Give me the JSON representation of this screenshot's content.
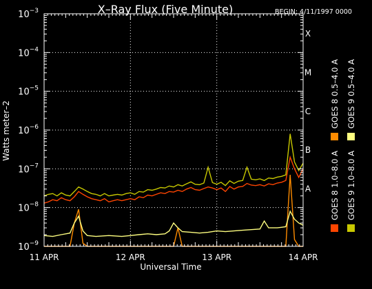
{
  "chart_data": {
    "type": "line",
    "title": "X–Ray Flux (Five Minute)",
    "begin_label": "BEGIN: 4/11/1997 0000",
    "xlabel": "Universal Time",
    "ylabel": "Watts meter–2",
    "x_ticks": [
      "11 APR",
      "12 APR",
      "13 APR",
      "14 APR"
    ],
    "xlim": [
      0,
      3
    ],
    "ylim": [
      1e-09,
      0.001
    ],
    "y_scale": "log",
    "y_ticks": [
      {
        "value": 1e-09,
        "label_base": "10",
        "label_exp": "−9"
      },
      {
        "value": 1e-08,
        "label_base": "10",
        "label_exp": "−8"
      },
      {
        "value": 1e-07,
        "label_base": "10",
        "label_exp": "−7"
      },
      {
        "value": 1e-06,
        "label_base": "10",
        "label_exp": "−6"
      },
      {
        "value": 1e-05,
        "label_base": "10",
        "label_exp": "−5"
      },
      {
        "value": 0.0001,
        "label_base": "10",
        "label_exp": "−4"
      },
      {
        "value": 0.001,
        "label_base": "10",
        "label_exp": "−3"
      }
    ],
    "flare_classes": [
      {
        "label": "X",
        "value": 0.000316
      },
      {
        "label": "M",
        "value": 3.16e-05
      },
      {
        "label": "C",
        "value": 3.16e-06
      },
      {
        "label": "B",
        "value": 3.16e-07
      },
      {
        "label": "A",
        "value": 3.16e-08
      }
    ],
    "grid": true,
    "legend_position": "right, vertical",
    "series": [
      {
        "name": "GOES 8 1.0–8.0 A",
        "color": "#ff4500",
        "x": [
          0,
          0.05,
          0.1,
          0.15,
          0.2,
          0.25,
          0.3,
          0.35,
          0.4,
          0.45,
          0.5,
          0.55,
          0.6,
          0.65,
          0.7,
          0.75,
          0.8,
          0.85,
          0.9,
          0.95,
          1.0,
          1.05,
          1.1,
          1.15,
          1.2,
          1.25,
          1.3,
          1.35,
          1.4,
          1.45,
          1.5,
          1.55,
          1.6,
          1.65,
          1.7,
          1.75,
          1.8,
          1.85,
          1.9,
          1.95,
          2.0,
          2.05,
          2.1,
          2.15,
          2.2,
          2.25,
          2.3,
          2.35,
          2.4,
          2.45,
          2.5,
          2.55,
          2.6,
          2.65,
          2.7,
          2.75,
          2.8,
          2.85,
          2.9,
          2.95,
          3.0
        ],
        "values": [
          1.3e-08,
          1.4e-08,
          1.6e-08,
          1.5e-08,
          1.8e-08,
          1.6e-08,
          1.5e-08,
          1.9e-08,
          2.6e-08,
          2.2e-08,
          1.9e-08,
          1.7e-08,
          1.6e-08,
          1.5e-08,
          1.7e-08,
          1.4e-08,
          1.5e-08,
          1.6e-08,
          1.5e-08,
          1.6e-08,
          1.7e-08,
          1.6e-08,
          1.9e-08,
          1.8e-08,
          2.1e-08,
          2e-08,
          2.2e-08,
          2.4e-08,
          2.3e-08,
          2.6e-08,
          2.5e-08,
          2.8e-08,
          2.6e-08,
          3e-08,
          3.3e-08,
          2.9e-08,
          2.8e-08,
          3.1e-08,
          3.4e-08,
          3.2e-08,
          2.9e-08,
          3.2e-08,
          2.6e-08,
          3.5e-08,
          3e-08,
          3.4e-08,
          3.5e-08,
          4.2e-08,
          3.8e-08,
          3.7e-08,
          3.9e-08,
          3.6e-08,
          4.1e-08,
          3.9e-08,
          4.3e-08,
          4.5e-08,
          5e-08,
          2e-07,
          1e-07,
          6e-08,
          1e-07
        ]
      },
      {
        "name": "GOES 8 0.5–4.0 A",
        "color": "#ff8c00",
        "x": [
          0,
          0.15,
          0.3,
          0.35,
          0.4,
          0.45,
          0.5,
          0.65,
          0.8,
          0.95,
          1.1,
          1.25,
          1.4,
          1.5,
          1.55,
          1.6,
          1.7,
          1.8,
          1.95,
          2.1,
          2.2,
          2.4,
          2.5,
          2.6,
          2.7,
          2.75,
          2.8,
          2.85,
          2.9,
          2.95,
          3.0
        ],
        "values": [
          1e-09,
          1e-09,
          1e-09,
          4e-09,
          9e-09,
          1.2e-09,
          1e-09,
          1e-09,
          1e-09,
          1e-09,
          1e-09,
          1e-09,
          1e-09,
          1e-09,
          3e-09,
          1e-09,
          1e-09,
          1e-09,
          1e-09,
          1e-09,
          1e-09,
          1e-09,
          1e-09,
          1e-09,
          1e-09,
          1e-09,
          1e-09,
          7e-08,
          1.5e-09,
          1e-09,
          1e-09
        ]
      },
      {
        "name": "GOES 9 1.0–8.0 A",
        "color": "#c8c800",
        "x": [
          0,
          0.05,
          0.1,
          0.15,
          0.2,
          0.25,
          0.3,
          0.35,
          0.4,
          0.45,
          0.5,
          0.55,
          0.6,
          0.65,
          0.7,
          0.75,
          0.8,
          0.85,
          0.9,
          0.95,
          1.0,
          1.05,
          1.1,
          1.15,
          1.2,
          1.25,
          1.3,
          1.35,
          1.4,
          1.45,
          1.5,
          1.55,
          1.6,
          1.65,
          1.7,
          1.75,
          1.8,
          1.85,
          1.9,
          1.95,
          2.0,
          2.05,
          2.1,
          2.15,
          2.2,
          2.25,
          2.3,
          2.35,
          2.4,
          2.45,
          2.5,
          2.55,
          2.6,
          2.65,
          2.7,
          2.75,
          2.8,
          2.85,
          2.9,
          2.95,
          3.0
        ],
        "values": [
          2e-08,
          2.2e-08,
          2.3e-08,
          2e-08,
          2.4e-08,
          2.1e-08,
          2e-08,
          2.6e-08,
          3.4e-08,
          3e-08,
          2.6e-08,
          2.3e-08,
          2.2e-08,
          2e-08,
          2.3e-08,
          2e-08,
          2.1e-08,
          2.2e-08,
          2.1e-08,
          2.3e-08,
          2.4e-08,
          2.2e-08,
          2.6e-08,
          2.5e-08,
          2.9e-08,
          2.8e-08,
          3e-08,
          3.3e-08,
          3.2e-08,
          3.6e-08,
          3.4e-08,
          3.9e-08,
          3.6e-08,
          4.1e-08,
          4.6e-08,
          4e-08,
          3.9e-08,
          4.3e-08,
          1.1e-07,
          4.4e-08,
          4e-08,
          4.5e-08,
          3.7e-08,
          4.9e-08,
          4.2e-08,
          4.8e-08,
          5e-08,
          1.1e-07,
          5.4e-08,
          5.2e-08,
          5.5e-08,
          5e-08,
          5.8e-08,
          5.6e-08,
          6.1e-08,
          6.4e-08,
          7e-08,
          8e-07,
          1.5e-07,
          9e-08,
          1.4e-07
        ]
      },
      {
        "name": "GOES 9 0.5–4.0 A",
        "color": "#ffff80",
        "x": [
          0,
          0.1,
          0.2,
          0.3,
          0.35,
          0.4,
          0.45,
          0.5,
          0.6,
          0.75,
          0.9,
          1.0,
          1.1,
          1.2,
          1.3,
          1.4,
          1.45,
          1.5,
          1.55,
          1.6,
          1.7,
          1.8,
          1.9,
          1.95,
          2.0,
          2.1,
          2.2,
          2.3,
          2.4,
          2.5,
          2.55,
          2.6,
          2.7,
          2.75,
          2.8,
          2.85,
          2.9,
          2.95,
          3.0
        ],
        "values": [
          1.9e-09,
          1.8e-09,
          2e-09,
          2.2e-09,
          4e-09,
          6e-09,
          2.5e-09,
          1.9e-09,
          1.8e-09,
          1.9e-09,
          1.8e-09,
          1.9e-09,
          2e-09,
          2.1e-09,
          2e-09,
          2.1e-09,
          2.5e-09,
          4e-09,
          3e-09,
          2.4e-09,
          2.3e-09,
          2.2e-09,
          2.3e-09,
          2.4e-09,
          2.5e-09,
          2.4e-09,
          2.5e-09,
          2.6e-09,
          2.7e-09,
          2.8e-09,
          4.5e-09,
          3e-09,
          3e-09,
          3.1e-09,
          3.2e-09,
          8e-09,
          5e-09,
          4e-09,
          3.5e-09
        ]
      }
    ]
  }
}
